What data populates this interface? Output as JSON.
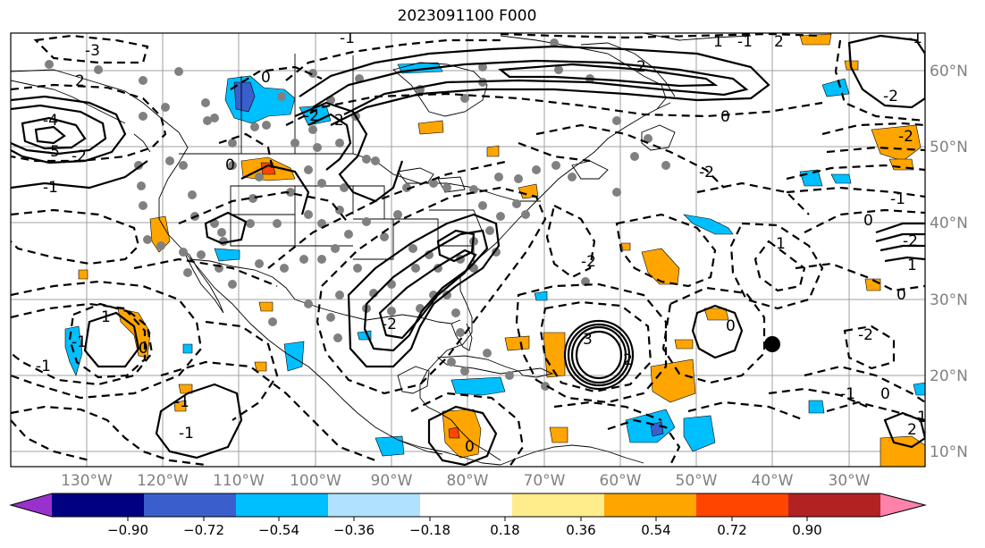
{
  "title": "2023091100 F000",
  "map": {
    "lon_ticks": [
      "130°W",
      "120°W",
      "110°W",
      "100°W",
      "90°W",
      "80°W",
      "70°W",
      "60°W",
      "50°W",
      "40°W",
      "30°W"
    ],
    "lat_ticks": [
      "60°N",
      "50°N",
      "40°N",
      "30°N",
      "20°N",
      "10°N"
    ],
    "lon_range": [
      -140,
      -20
    ],
    "lat_range": [
      8,
      65
    ],
    "contour_labels": [
      "-3",
      "2",
      "-1",
      "0",
      "-4",
      "-2",
      "-5",
      "-1",
      "-2",
      "2",
      "0",
      "1",
      "2",
      "-1",
      "0",
      "2",
      "-2",
      "-1",
      "-2",
      "-2",
      "0",
      "1",
      "-1",
      "0",
      "-2",
      "1",
      "-2",
      "-1",
      "0",
      "-1",
      "2",
      "-2",
      "3",
      "2",
      "0",
      "-2",
      "1",
      "-1",
      "0",
      "-1",
      "-1",
      "-1",
      "0"
    ]
  },
  "colorbar": {
    "colors": [
      "#9932cc",
      "#000080",
      "#3a5fcd",
      "#00bfff",
      "#b0e2ff",
      "#ffffff",
      "#ffec8b",
      "#ffa500",
      "#ff4500",
      "#b22222",
      "#ff82ab"
    ],
    "tick_labels": [
      "−0.90",
      "−0.72",
      "−0.54",
      "−0.36",
      "−0.18",
      "0.18",
      "0.36",
      "0.54",
      "0.72",
      "0.90"
    ]
  }
}
